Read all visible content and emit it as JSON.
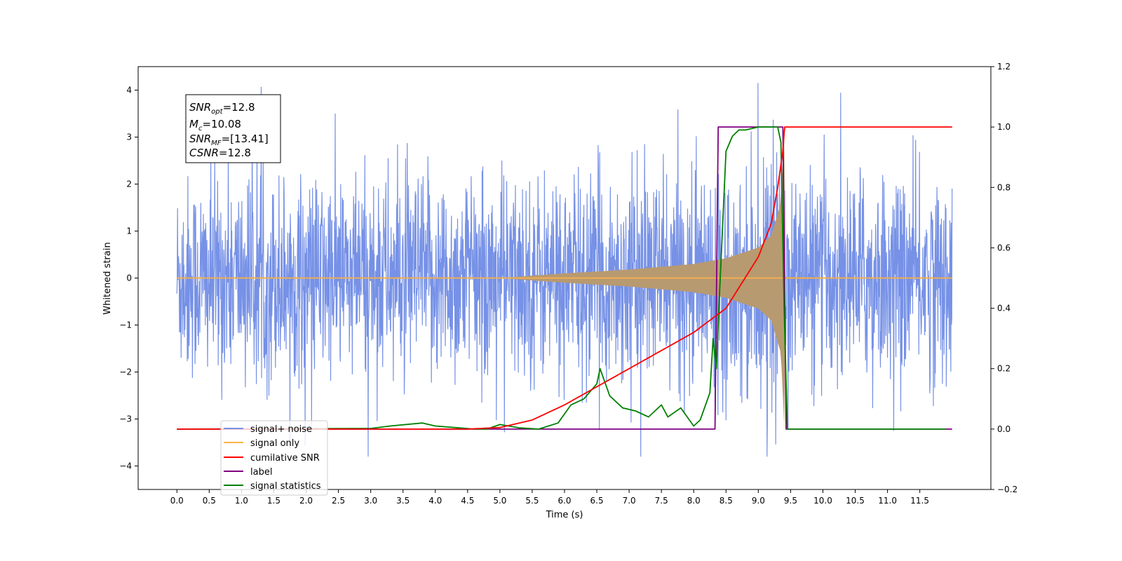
{
  "chart_data": {
    "type": "line",
    "xlabel": "Time (s)",
    "ylabel": "Whitened strain",
    "xlim": [
      -0.6,
      12.6
    ],
    "ylim": [
      -4.5,
      4.5
    ],
    "y2lim": [
      -0.2,
      1.2
    ],
    "xticks": [
      "0.0",
      "0.5",
      "1.0",
      "1.5",
      "2.0",
      "2.5",
      "3.0",
      "3.5",
      "4.0",
      "4.5",
      "5.0",
      "5.5",
      "6.0",
      "6.5",
      "7.0",
      "7.5",
      "8.0",
      "8.5",
      "9.0",
      "9.5",
      "10.0",
      "10.5",
      "11.0",
      "11.5"
    ],
    "yticks": [
      "4",
      "3",
      "2",
      "1",
      "0",
      "−1",
      "−2",
      "−3",
      "−4"
    ],
    "y2ticks": [
      "1.2",
      "1.0",
      "0.8",
      "0.6",
      "0.4",
      "0.2",
      "0.0",
      "−0.2"
    ],
    "legend_position": "lower left",
    "legend": [
      "signal+ noise",
      "signal only",
      "cumilative SNR",
      "label",
      "signal statistics"
    ],
    "annotations": [
      {
        "main": "SNR",
        "sub": "opt",
        "value": "=12.8"
      },
      {
        "main": "M",
        "sub": "c",
        "value": "=10.08"
      },
      {
        "main": "SNR",
        "sub": "MF",
        "value": "=[13.41]"
      },
      {
        "main": "CSNR",
        "sub": "",
        "value": "=12.8"
      }
    ],
    "colors": {
      "signal_noise": "#7691e6",
      "signal_only": "#ffb347",
      "signal_only_envelope": "#b89a70",
      "cumulative_snr": "#ff0000",
      "label": "#800080",
      "signal_statistics": "#008000"
    },
    "series": [
      {
        "name": "signal+ noise",
        "axis": "left",
        "description_range": [
          0.0,
          12.0
        ],
        "amplitude_envelope_x": [
          0.0,
          2.0,
          4.0,
          6.0,
          8.0,
          8.5,
          9.0,
          9.3,
          9.4,
          9.45,
          12.0
        ],
        "amplitude_envelope_y": [
          2.7,
          2.7,
          2.7,
          2.7,
          2.8,
          2.9,
          3.1,
          3.3,
          3.6,
          2.7,
          2.7
        ]
      },
      {
        "name": "signal only",
        "axis": "left",
        "chirp_start": 5.0,
        "merger": 9.4,
        "envelope_x": [
          0.0,
          5.0,
          6.0,
          7.0,
          8.0,
          8.5,
          9.0,
          9.2,
          9.35,
          9.4,
          9.42,
          12.0
        ],
        "envelope_y": [
          0.0,
          0.0,
          0.1,
          0.18,
          0.3,
          0.42,
          0.65,
          0.9,
          1.6,
          3.1,
          0.02,
          0.0
        ]
      },
      {
        "name": "cumilative SNR",
        "axis": "right",
        "x": [
          4.5,
          5.0,
          5.5,
          6.0,
          6.5,
          7.0,
          7.5,
          8.0,
          8.5,
          9.0,
          9.2,
          9.3,
          9.38,
          9.4,
          9.41,
          12.0
        ],
        "y": [
          0.0,
          0.005,
          0.03,
          0.08,
          0.14,
          0.2,
          0.26,
          0.32,
          0.4,
          0.57,
          0.68,
          0.8,
          0.92,
          0.98,
          1.0,
          1.0
        ]
      },
      {
        "name": "label",
        "axis": "right",
        "x": [
          0.0,
          8.33,
          8.38,
          9.38,
          9.43,
          12.0
        ],
        "y": [
          0.0,
          0.0,
          1.0,
          1.0,
          0.0,
          0.0
        ]
      },
      {
        "name": "signal statistics",
        "axis": "right",
        "x": [
          0.0,
          3.0,
          3.3,
          3.8,
          4.0,
          4.3,
          4.6,
          4.8,
          5.0,
          5.3,
          5.6,
          5.9,
          6.1,
          6.3,
          6.5,
          6.55,
          6.7,
          6.9,
          7.1,
          7.3,
          7.5,
          7.6,
          7.8,
          8.0,
          8.1,
          8.25,
          8.3,
          8.35,
          8.4,
          8.5,
          8.6,
          8.7,
          8.8,
          9.0,
          9.1,
          9.3,
          9.35,
          9.4,
          9.45,
          11.9
        ],
        "y": [
          0.0,
          0.002,
          0.01,
          0.02,
          0.01,
          0.005,
          0.0,
          0.0,
          0.015,
          0.004,
          0.0,
          0.02,
          0.08,
          0.1,
          0.15,
          0.2,
          0.11,
          0.07,
          0.06,
          0.04,
          0.08,
          0.04,
          0.07,
          0.01,
          0.03,
          0.12,
          0.3,
          0.2,
          0.45,
          0.92,
          0.97,
          0.99,
          0.99,
          1.0,
          1.0,
          1.0,
          0.95,
          0.4,
          0.0,
          0.0
        ]
      }
    ]
  }
}
